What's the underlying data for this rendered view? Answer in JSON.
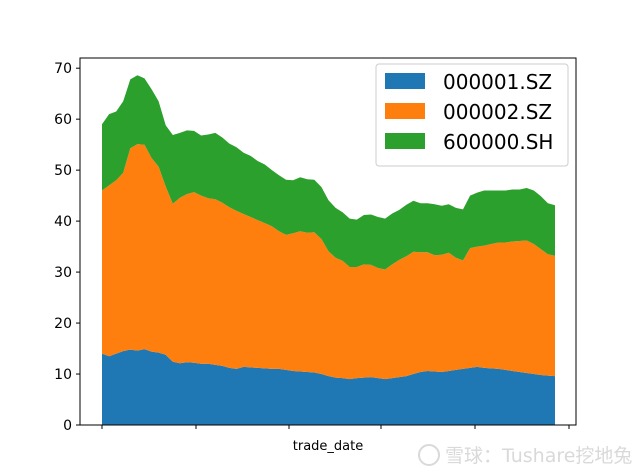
{
  "chart_data": {
    "type": "area",
    "stacked": true,
    "xlabel": "trade_date",
    "ylabel": "",
    "ylim": [
      0,
      72
    ],
    "yticks": [
      0,
      10,
      20,
      30,
      40,
      50,
      60,
      70
    ],
    "grid": false,
    "legend_position": "upper-right",
    "series": [
      {
        "name": "000001.SZ",
        "color": "#1f77b4",
        "values": [
          14.0,
          13.5,
          14.0,
          14.5,
          14.8,
          14.6,
          14.9,
          14.4,
          14.2,
          13.8,
          12.4,
          12.1,
          12.3,
          12.2,
          12.0,
          12.0,
          11.8,
          11.6,
          11.2,
          11.0,
          11.4,
          11.3,
          11.2,
          11.1,
          11.0,
          11.0,
          10.8,
          10.6,
          10.5,
          10.4,
          10.3,
          10.0,
          9.6,
          9.3,
          9.2,
          9.0,
          9.2,
          9.3,
          9.4,
          9.2,
          9.0,
          9.2,
          9.4,
          9.6,
          10.0,
          10.4,
          10.6,
          10.5,
          10.4,
          10.6,
          10.8,
          11.0,
          11.2,
          11.4,
          11.2,
          11.1,
          11.0,
          10.8,
          10.6,
          10.4,
          10.2,
          10.0,
          9.8,
          9.7,
          9.6
        ]
      },
      {
        "name": "000002.SZ",
        "color": "#ff7f0e",
        "values": [
          32.0,
          33.5,
          34.0,
          35.0,
          39.5,
          40.5,
          40.1,
          38.0,
          36.5,
          33.0,
          31.0,
          32.5,
          33.0,
          33.5,
          33.0,
          32.5,
          32.5,
          32.0,
          31.5,
          31.0,
          30.0,
          29.5,
          29.0,
          28.5,
          28.0,
          27.0,
          26.5,
          27.0,
          27.5,
          27.3,
          27.5,
          26.5,
          24.5,
          23.5,
          23.0,
          22.0,
          21.8,
          22.2,
          22.0,
          21.6,
          21.5,
          22.3,
          23.0,
          23.5,
          24.0,
          23.5,
          23.3,
          22.8,
          23.0,
          23.2,
          22.0,
          21.3,
          23.5,
          23.6,
          24.0,
          24.4,
          24.8,
          25.0,
          25.4,
          25.7,
          26.0,
          25.5,
          24.7,
          23.8,
          23.6
        ]
      },
      {
        "name": "600000.SH",
        "color": "#2ca02c",
        "values": [
          13.0,
          14.0,
          13.5,
          14.0,
          13.5,
          13.5,
          13.0,
          13.5,
          12.8,
          12.0,
          13.5,
          12.7,
          12.5,
          12.0,
          11.8,
          12.5,
          13.0,
          12.8,
          12.5,
          12.5,
          12.0,
          12.0,
          11.6,
          11.5,
          11.0,
          11.0,
          10.8,
          10.4,
          10.6,
          10.5,
          10.3,
          10.2,
          10.0,
          9.8,
          9.5,
          9.5,
          9.3,
          9.7,
          9.9,
          10.0,
          10.0,
          10.0,
          9.8,
          10.1,
          10.0,
          9.6,
          9.6,
          10.0,
          9.6,
          9.5,
          9.8,
          10.0,
          10.3,
          10.6,
          10.8,
          10.5,
          10.2,
          10.2,
          10.2,
          10.1,
          10.3,
          10.5,
          10.4,
          10.0,
          9.9
        ]
      }
    ]
  },
  "watermark": "雪球：Tushare挖地兔"
}
